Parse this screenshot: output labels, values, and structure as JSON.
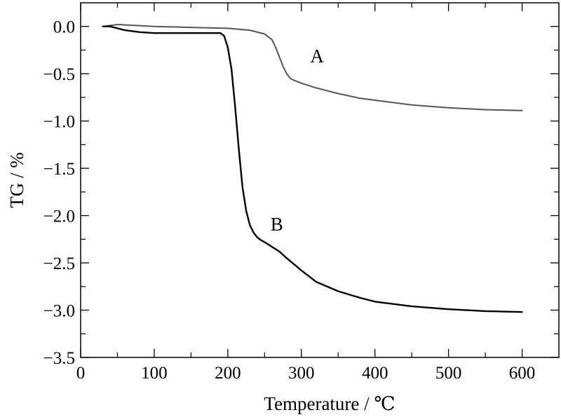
{
  "chart_data": {
    "type": "line",
    "title": "",
    "xlabel": "Temperature / ℃",
    "ylabel": "TG / %",
    "xlim": [
      0,
      650
    ],
    "ylim": [
      -3.5,
      0.25
    ],
    "x_ticks": [
      0,
      100,
      200,
      300,
      400,
      500,
      600
    ],
    "x_tick_labels": [
      "0",
      "100",
      "200",
      "300",
      "400",
      "500",
      "600"
    ],
    "y_ticks": [
      0.0,
      -0.5,
      -1.0,
      -1.5,
      -2.0,
      -2.5,
      -3.0,
      -3.5
    ],
    "y_tick_labels": [
      "0.0",
      "−0.5",
      "−1.0",
      "−1.5",
      "−2.0",
      "−2.5",
      "−3.0",
      "−3.5"
    ],
    "grid": false,
    "legend": "none",
    "series": [
      {
        "name": "A",
        "color": "#555555",
        "x": [
          30,
          50,
          100,
          150,
          200,
          230,
          250,
          260,
          265,
          270,
          275,
          280,
          285,
          290,
          300,
          320,
          350,
          380,
          400,
          450,
          500,
          550,
          600
        ],
        "y": [
          0.0,
          0.02,
          0.0,
          -0.01,
          -0.02,
          -0.04,
          -0.08,
          -0.14,
          -0.22,
          -0.32,
          -0.42,
          -0.5,
          -0.55,
          -0.57,
          -0.6,
          -0.65,
          -0.71,
          -0.76,
          -0.78,
          -0.83,
          -0.86,
          -0.88,
          -0.89
        ]
      },
      {
        "name": "B",
        "color": "#000000",
        "x": [
          30,
          40,
          50,
          60,
          80,
          100,
          150,
          180,
          190,
          195,
          200,
          205,
          210,
          215,
          220,
          225,
          230,
          235,
          240,
          245,
          250,
          260,
          270,
          280,
          300,
          320,
          350,
          380,
          400,
          450,
          500,
          550,
          600
        ],
        "y": [
          0.0,
          0.0,
          -0.02,
          -0.04,
          -0.06,
          -0.07,
          -0.07,
          -0.07,
          -0.07,
          -0.1,
          -0.22,
          -0.45,
          -0.85,
          -1.3,
          -1.7,
          -1.95,
          -2.1,
          -2.18,
          -2.23,
          -2.26,
          -2.28,
          -2.33,
          -2.38,
          -2.45,
          -2.58,
          -2.7,
          -2.8,
          -2.87,
          -2.91,
          -2.96,
          -2.99,
          -3.01,
          -3.02
        ]
      }
    ],
    "annotations": [
      {
        "text": "A",
        "x": 312,
        "y": -0.38
      },
      {
        "text": "B",
        "x": 258,
        "y": -2.16
      }
    ]
  }
}
